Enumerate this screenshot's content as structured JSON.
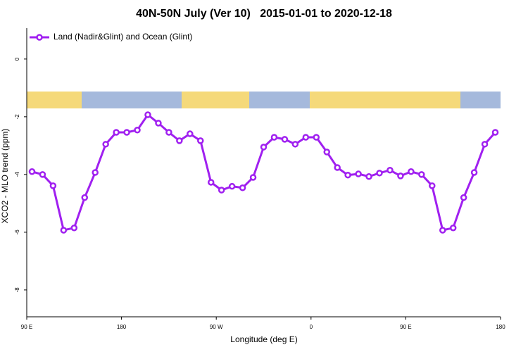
{
  "chart_data": {
    "type": "line",
    "title": "40N-50N July (Ver 10)   2015-01-01 to 2020-12-18",
    "x_label": "Longitude (deg E)",
    "y_label": "XCO2 - MLO trend (ppm)",
    "x": [
      95,
      105,
      115,
      125,
      135,
      145,
      155,
      165,
      175,
      185,
      195,
      205,
      215,
      225,
      235,
      245,
      255,
      265,
      275,
      285,
      295,
      305,
      315,
      325,
      335,
      345,
      355,
      365,
      375,
      385,
      395,
      405,
      415,
      425,
      435,
      445,
      455,
      465,
      475,
      485,
      495,
      505,
      515,
      525,
      535
    ],
    "series": [
      {
        "name": "Land (Nadir&Glint) and Ocean (Glint)",
        "color": "#a020f0",
        "values": [
          -3.9,
          -4.0,
          -4.39,
          -5.93,
          -5.85,
          -4.8,
          -3.93,
          -2.95,
          -2.54,
          -2.54,
          -2.46,
          -1.93,
          -2.22,
          -2.54,
          -2.83,
          -2.59,
          -2.83,
          -4.27,
          -4.54,
          -4.41,
          -4.46,
          -4.1,
          -3.05,
          -2.71,
          -2.78,
          -2.95,
          -2.71,
          -2.71,
          -3.22,
          -3.76,
          -4.02,
          -3.98,
          -4.07,
          -3.95,
          -3.85,
          -4.05,
          -3.9,
          -4.0,
          -4.39,
          -5.93,
          -5.85,
          -4.8,
          -3.93,
          -2.95,
          -2.54
        ]
      }
    ],
    "xlim": [
      90,
      540
    ],
    "xticks": [
      {
        "value": 90,
        "label": "90 E"
      },
      180,
      {
        "value": 270,
        "label": "90 W"
      },
      {
        "value": 360,
        "label": "0"
      },
      {
        "value": 450,
        "label": "90 E"
      },
      {
        "value": 540,
        "label": "180"
      }
    ],
    "ylim": [
      -8.93,
      1.07
    ],
    "yticks": [
      0,
      -2,
      -4,
      -6,
      -8
    ],
    "legend": "top-left"
  }
}
